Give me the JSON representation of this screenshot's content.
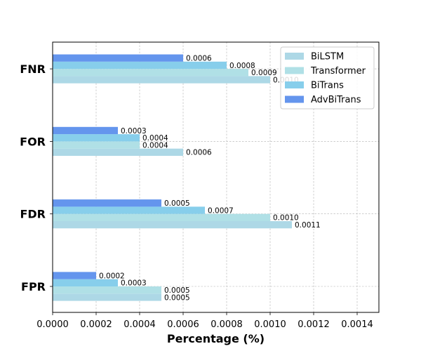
{
  "chart_data": {
    "type": "bar",
    "orientation": "horizontal",
    "categories": [
      "FPR",
      "FDR",
      "FOR",
      "FNR"
    ],
    "series": [
      {
        "name": "BiLSTM",
        "color": "#add8e6",
        "values": [
          0.0005,
          0.0011,
          0.0006,
          0.001
        ],
        "labels": [
          "0.0005",
          "0.0011",
          "0.0006",
          "0.0010"
        ]
      },
      {
        "name": "Transformer",
        "color": "#b0e0e6",
        "values": [
          0.0005,
          0.001,
          0.0004,
          0.0009
        ],
        "labels": [
          "0.0005",
          "0.0010",
          "0.0004",
          "0.0009"
        ]
      },
      {
        "name": "BiTrans",
        "color": "#87ceeb",
        "values": [
          0.0003,
          0.0007,
          0.0004,
          0.0008
        ],
        "labels": [
          "0.0003",
          "0.0007",
          "0.0004",
          "0.0008"
        ]
      },
      {
        "name": "AdvBiTrans",
        "color": "#6495ed",
        "values": [
          0.0002,
          0.0005,
          0.0003,
          0.0006
        ],
        "labels": [
          "0.0002",
          "0.0005",
          "0.0003",
          "0.0006"
        ]
      }
    ],
    "xlabel": "Percentage (%)",
    "ylabel": "",
    "title": "",
    "xlim": [
      0,
      0.0015
    ],
    "xticks": [
      0,
      0.0002,
      0.0004,
      0.0006,
      0.0008,
      0.001,
      0.0012,
      0.0014
    ],
    "xtick_labels": [
      "0.0000",
      "0.0002",
      "0.0004",
      "0.0006",
      "0.0008",
      "0.0010",
      "0.0012",
      "0.0014"
    ],
    "grid": true,
    "legend_position": "top-right"
  }
}
